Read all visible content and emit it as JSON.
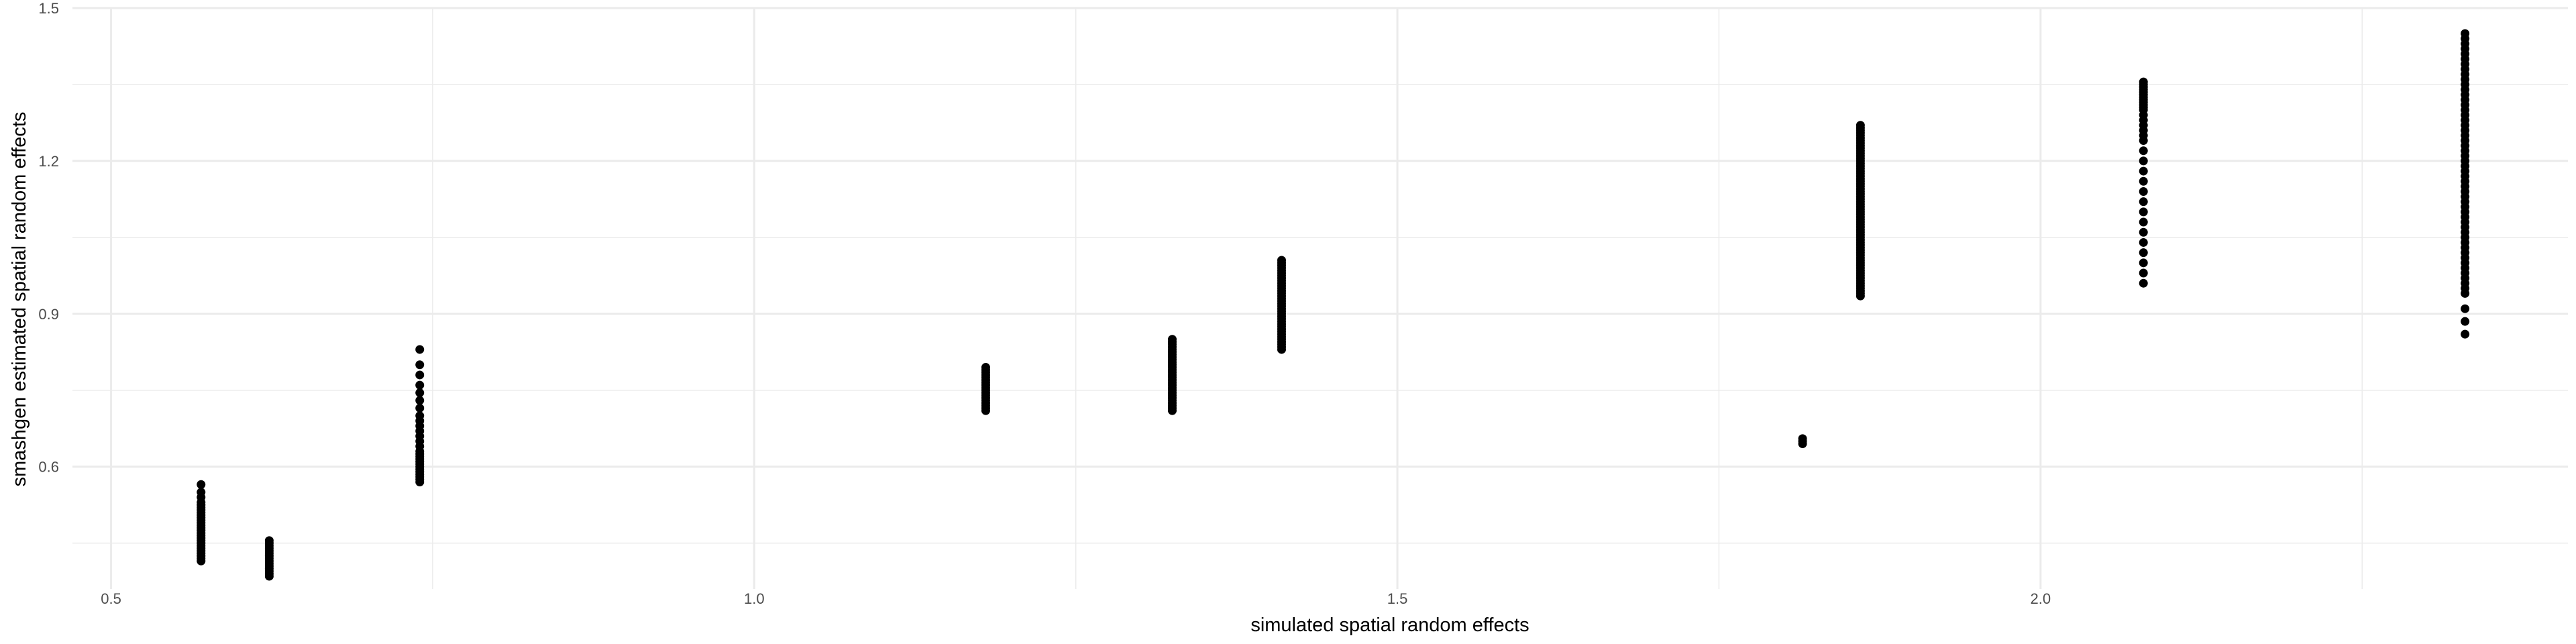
{
  "chart_data": {
    "type": "scatter",
    "xlabel": "simulated spatial random effects",
    "ylabel": "smashgen estimated spatial random effects",
    "xlim": [
      0.47,
      2.41
    ],
    "ylim": [
      0.36,
      1.5
    ],
    "x_ticks": [
      0.5,
      1.0,
      1.5,
      2.0
    ],
    "x_tick_labels": [
      "0.5",
      "1.0",
      "1.5",
      "2.0"
    ],
    "y_ticks": [
      0.6,
      0.9,
      1.2,
      1.5
    ],
    "y_tick_labels": [
      "0.6",
      "0.9",
      "1.2",
      "1.5"
    ],
    "grid": true,
    "legend": "none",
    "point_color": "#000000",
    "grid_color": "#ebebeb",
    "columns": [
      {
        "x": 0.57,
        "y": [
          0.415,
          0.42,
          0.425,
          0.43,
          0.435,
          0.44,
          0.445,
          0.45,
          0.455,
          0.46,
          0.465,
          0.47,
          0.475,
          0.48,
          0.485,
          0.49,
          0.495,
          0.5,
          0.505,
          0.51,
          0.515,
          0.52,
          0.525,
          0.53,
          0.54,
          0.55,
          0.565
        ]
      },
      {
        "x": 0.623,
        "y": [
          0.385,
          0.39,
          0.395,
          0.4,
          0.405,
          0.41,
          0.415,
          0.42,
          0.425,
          0.43,
          0.435,
          0.44,
          0.445,
          0.45,
          0.455
        ]
      },
      {
        "x": 0.74,
        "y": [
          0.57,
          0.575,
          0.58,
          0.585,
          0.59,
          0.595,
          0.6,
          0.605,
          0.61,
          0.615,
          0.62,
          0.625,
          0.63,
          0.64,
          0.65,
          0.66,
          0.67,
          0.68,
          0.69,
          0.7,
          0.715,
          0.73,
          0.745,
          0.76,
          0.78,
          0.8,
          0.83
        ]
      },
      {
        "x": 1.18,
        "y": [
          0.71,
          0.715,
          0.72,
          0.725,
          0.73,
          0.735,
          0.74,
          0.745,
          0.75,
          0.755,
          0.76,
          0.765,
          0.77,
          0.775,
          0.78,
          0.785,
          0.79,
          0.795
        ]
      },
      {
        "x": 1.325,
        "y": [
          0.71,
          0.715,
          0.72,
          0.725,
          0.73,
          0.735,
          0.74,
          0.745,
          0.75,
          0.755,
          0.76,
          0.765,
          0.77,
          0.775,
          0.78,
          0.785,
          0.79,
          0.795,
          0.8,
          0.805,
          0.81,
          0.815,
          0.82,
          0.825,
          0.83,
          0.835,
          0.84,
          0.845,
          0.85
        ]
      },
      {
        "x": 1.41,
        "y": [
          0.83,
          0.835,
          0.84,
          0.845,
          0.85,
          0.855,
          0.86,
          0.865,
          0.87,
          0.875,
          0.88,
          0.885,
          0.89,
          0.895,
          0.9,
          0.905,
          0.91,
          0.915,
          0.92,
          0.925,
          0.93,
          0.935,
          0.94,
          0.945,
          0.95,
          0.955,
          0.96,
          0.965,
          0.97,
          0.975,
          0.98,
          0.985,
          0.99,
          0.995,
          1.0,
          1.005
        ]
      },
      {
        "x": 1.815,
        "y": [
          0.645,
          0.65,
          0.655
        ]
      },
      {
        "x": 1.86,
        "y": [
          0.935,
          0.94,
          0.945,
          0.95,
          0.955,
          0.96,
          0.965,
          0.97,
          0.975,
          0.98,
          0.985,
          0.99,
          0.995,
          1.0,
          1.005,
          1.01,
          1.015,
          1.02,
          1.025,
          1.03,
          1.035,
          1.04,
          1.045,
          1.05,
          1.055,
          1.06,
          1.065,
          1.07,
          1.075,
          1.08,
          1.085,
          1.09,
          1.095,
          1.1,
          1.105,
          1.11,
          1.115,
          1.12,
          1.125,
          1.13,
          1.135,
          1.14,
          1.145,
          1.15,
          1.155,
          1.16,
          1.165,
          1.17,
          1.175,
          1.18,
          1.185,
          1.19,
          1.195,
          1.2,
          1.205,
          1.21,
          1.215,
          1.22,
          1.225,
          1.23,
          1.235,
          1.24,
          1.245,
          1.25,
          1.255,
          1.26,
          1.265,
          1.27
        ]
      },
      {
        "x": 2.08,
        "y": [
          0.96,
          0.98,
          1.0,
          1.02,
          1.04,
          1.06,
          1.08,
          1.1,
          1.12,
          1.14,
          1.16,
          1.18,
          1.2,
          1.22,
          1.24,
          1.25,
          1.26,
          1.27,
          1.28,
          1.29,
          1.3,
          1.305,
          1.31,
          1.315,
          1.32,
          1.325,
          1.33,
          1.335,
          1.34,
          1.345,
          1.35,
          1.355
        ]
      },
      {
        "x": 2.33,
        "y": [
          0.86,
          0.885,
          0.91,
          0.94,
          0.95,
          0.96,
          0.97,
          0.98,
          0.99,
          1.0,
          1.01,
          1.02,
          1.03,
          1.04,
          1.05,
          1.06,
          1.07,
          1.08,
          1.09,
          1.1,
          1.11,
          1.12,
          1.13,
          1.14,
          1.15,
          1.16,
          1.17,
          1.18,
          1.19,
          1.2,
          1.21,
          1.22,
          1.23,
          1.24,
          1.25,
          1.26,
          1.27,
          1.28,
          1.29,
          1.3,
          1.31,
          1.32,
          1.33,
          1.34,
          1.35,
          1.36,
          1.37,
          1.38,
          1.39,
          1.4,
          1.41,
          1.42,
          1.43,
          1.44,
          1.45
        ]
      }
    ]
  }
}
